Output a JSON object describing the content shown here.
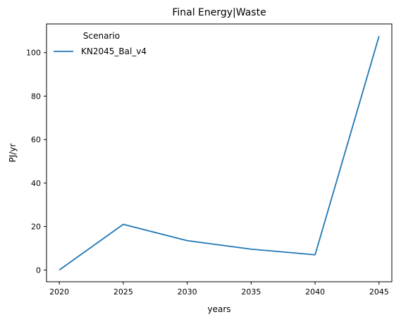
{
  "chart_data": {
    "type": "line",
    "title": "Final Energy|Waste",
    "xlabel": "years",
    "ylabel": "PJ/yr",
    "x": [
      2020,
      2025,
      2030,
      2035,
      2040,
      2045
    ],
    "x_ticks": [
      2020,
      2025,
      2030,
      2035,
      2040,
      2045
    ],
    "y_ticks": [
      0,
      20,
      40,
      60,
      80,
      100
    ],
    "xlim": [
      2019.0,
      2046.0
    ],
    "ylim": [
      -5.4,
      113.2
    ],
    "grid": false,
    "legend": {
      "title": "Scenario",
      "placement": "top-left"
    },
    "series": [
      {
        "name": "KN2045_Bal_v4",
        "color": "#1f77b4",
        "values": [
          0.0,
          21.0,
          13.5,
          9.6,
          7.0,
          107.6
        ]
      }
    ]
  }
}
